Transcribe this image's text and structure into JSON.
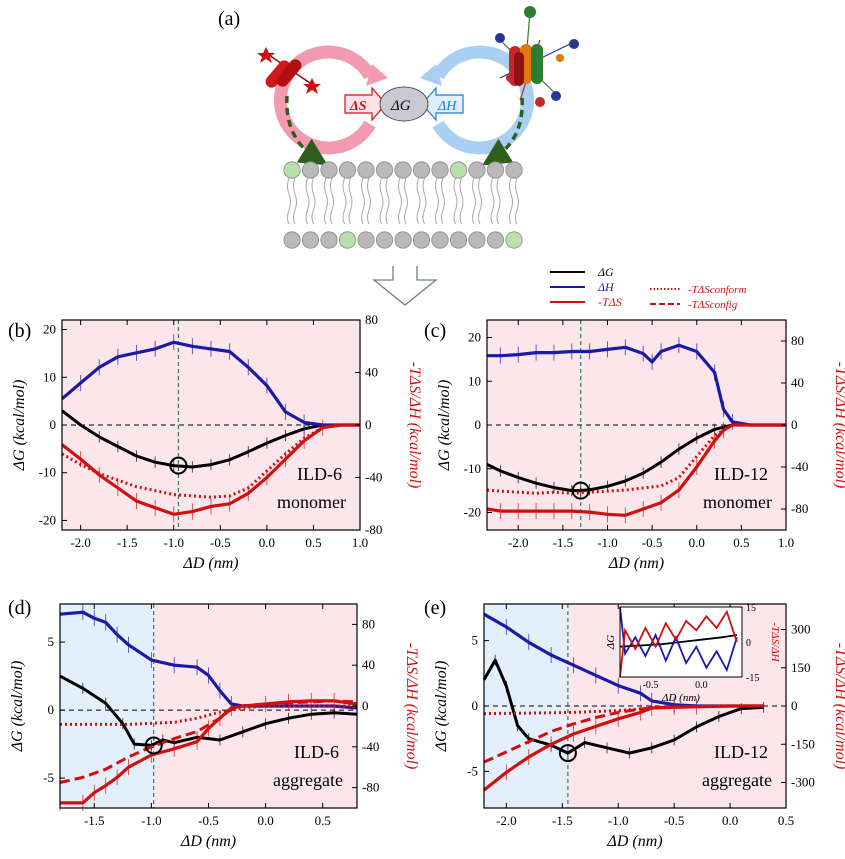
{
  "figure": {
    "label_a": "(a)",
    "delta_g": "ΔG",
    "delta_s": "ΔS",
    "delta_h": "ΔH"
  },
  "legend": {
    "dg": "ΔG",
    "dh": "ΔH",
    "tds": "-TΔS",
    "tds_conform": "-TΔSconform",
    "tds_config": "-TΔSconfig"
  },
  "colors": {
    "dg": "#000000",
    "dh": "#1a1aa6",
    "tds": "#d01010",
    "pink_bg": "#fbe6ec",
    "blue_bg": "#e3effa",
    "membrane_head": "#b9b9b9",
    "membrane_green": "#b8e0a8",
    "arrow_green": "#2e5e1e"
  },
  "chart_data": [
    {
      "panel": "(b)",
      "type": "line",
      "xlabel": "ΔD (nm)",
      "ylabel": "ΔG (kcal/mol)",
      "y2label": "-TΔS/ΔH (kcal/mol)",
      "xlim": [
        -2.2,
        1.0
      ],
      "ylim": [
        -22,
        22
      ],
      "y2lim": [
        -80,
        80
      ],
      "xticks": [
        -2.0,
        -1.5,
        -1.0,
        -0.5,
        0.0,
        0.5,
        1.0
      ],
      "yticks": [
        -20,
        -10,
        0,
        10,
        20
      ],
      "y2ticks": [
        -80,
        -40,
        0,
        40,
        80
      ],
      "xtick_labels": [
        "-2.0",
        "-1.5",
        "-1.0",
        "-0.5",
        "0.0",
        "0.5",
        "1.0"
      ],
      "ytick_labels": [
        "-20",
        "-10",
        "0",
        "10",
        "20"
      ],
      "y2tick_labels": [
        "-80",
        "-40",
        "0",
        "40",
        "80"
      ],
      "annotation": [
        "ILD-6",
        "monomer"
      ],
      "vline": -0.95,
      "circle": [
        -0.95,
        -8.5
      ],
      "blue_region": null,
      "series": [
        {
          "name": "ΔG",
          "axis": "left",
          "style": "solid",
          "x": [
            -2.2,
            -2.0,
            -1.8,
            -1.6,
            -1.4,
            -1.2,
            -1.0,
            -0.8,
            -0.6,
            -0.4,
            -0.2,
            0.0,
            0.2,
            0.4,
            0.6,
            0.8,
            1.0
          ],
          "y": [
            3.0,
            0.0,
            -2.5,
            -4.5,
            -6.5,
            -7.8,
            -8.5,
            -8.8,
            -8.3,
            -7.3,
            -5.6,
            -3.8,
            -2.2,
            -0.8,
            0.0,
            0.0,
            0.0
          ]
        },
        {
          "name": "ΔH",
          "axis": "right",
          "style": "solid",
          "x": [
            -2.2,
            -2.0,
            -1.8,
            -1.6,
            -1.4,
            -1.2,
            -1.0,
            -0.8,
            -0.6,
            -0.4,
            -0.2,
            0.0,
            0.2,
            0.4,
            0.6,
            0.8,
            1.0
          ],
          "y": [
            20,
            32,
            44,
            52,
            55,
            58,
            63,
            60,
            58,
            56,
            44,
            30,
            10,
            2,
            0,
            0,
            0
          ]
        },
        {
          "name": "-TΔS",
          "axis": "right",
          "style": "solid",
          "x": [
            -2.2,
            -2.0,
            -1.8,
            -1.6,
            -1.4,
            -1.2,
            -1.0,
            -0.8,
            -0.6,
            -0.4,
            -0.2,
            0.0,
            0.2,
            0.4,
            0.6,
            0.8,
            1.0
          ],
          "y": [
            -15,
            -26,
            -38,
            -48,
            -58,
            -63,
            -68,
            -66,
            -62,
            -60,
            -52,
            -40,
            -26,
            -12,
            -2,
            0,
            0
          ]
        },
        {
          "name": "-TΔSconform",
          "axis": "right",
          "style": "dotted",
          "x": [
            -2.2,
            -2.0,
            -1.8,
            -1.6,
            -1.4,
            -1.2,
            -1.0,
            -0.8,
            -0.6,
            -0.4,
            -0.2,
            0.0,
            0.2,
            0.4,
            0.6,
            0.8,
            1.0
          ],
          "y": [
            -22,
            -30,
            -37,
            -42,
            -47,
            -50,
            -53,
            -54,
            -55,
            -54,
            -48,
            -35,
            -22,
            -10,
            -2,
            0,
            0
          ]
        }
      ]
    },
    {
      "panel": "(c)",
      "type": "line",
      "xlabel": "ΔD (nm)",
      "ylabel": "ΔG (kcal/mol)",
      "y2label": "-TΔS/ΔH (kcal/mol)",
      "xlim": [
        -2.35,
        1.0
      ],
      "ylim": [
        -24,
        24
      ],
      "y2lim": [
        -100,
        100
      ],
      "xticks": [
        -2.0,
        -1.5,
        -1.0,
        -0.5,
        0.0,
        0.5,
        1.0
      ],
      "yticks": [
        -20,
        -10,
        0,
        10,
        20
      ],
      "y2ticks": [
        -80,
        -40,
        0,
        40,
        80
      ],
      "xtick_labels": [
        "-2.0",
        "-1.5",
        "-1.0",
        "-0.5",
        "0.0",
        "0.5",
        "1.0"
      ],
      "ytick_labels": [
        "-20",
        "-10",
        "0",
        "10",
        "20"
      ],
      "y2tick_labels": [
        "-80",
        "-40",
        "0",
        "40",
        "80"
      ],
      "annotation": [
        "ILD-12",
        "monomer"
      ],
      "vline": -1.3,
      "circle": [
        -1.3,
        -15
      ],
      "blue_region": null,
      "series": [
        {
          "name": "ΔG",
          "axis": "left",
          "style": "solid",
          "x": [
            -2.35,
            -2.2,
            -2.0,
            -1.8,
            -1.6,
            -1.4,
            -1.3,
            -1.2,
            -1.0,
            -0.8,
            -0.6,
            -0.4,
            -0.2,
            0.0,
            0.2,
            0.4,
            0.6,
            0.8,
            1.0
          ],
          "y": [
            -9.0,
            -10.5,
            -12.0,
            -13.3,
            -14.3,
            -15.0,
            -15.0,
            -14.8,
            -14.0,
            -12.8,
            -11.0,
            -8.5,
            -5.5,
            -3.0,
            -1.0,
            0.0,
            0.0,
            0.0,
            0.0
          ]
        },
        {
          "name": "ΔH",
          "axis": "right",
          "style": "solid",
          "x": [
            -2.35,
            -2.2,
            -2.0,
            -1.8,
            -1.6,
            -1.4,
            -1.2,
            -1.0,
            -0.8,
            -0.6,
            -0.5,
            -0.4,
            -0.2,
            0.0,
            0.2,
            0.3,
            0.4,
            0.6,
            0.8,
            1.0
          ],
          "y": [
            66,
            66,
            67,
            69,
            69,
            70,
            70,
            72,
            74,
            68,
            60,
            70,
            76,
            70,
            50,
            15,
            3,
            0,
            0,
            0
          ]
        },
        {
          "name": "-TΔS",
          "axis": "right",
          "style": "solid",
          "x": [
            -2.35,
            -2.2,
            -2.0,
            -1.8,
            -1.6,
            -1.4,
            -1.2,
            -1.0,
            -0.8,
            -0.6,
            -0.4,
            -0.2,
            0.0,
            0.2,
            0.3,
            0.4,
            0.6,
            0.8,
            1.0
          ],
          "y": [
            -80,
            -82,
            -82,
            -82,
            -82,
            -82,
            -83,
            -85,
            -86,
            -80,
            -74,
            -62,
            -40,
            -15,
            -5,
            0,
            0,
            0,
            0
          ]
        },
        {
          "name": "-TΔSconform",
          "axis": "right",
          "style": "dotted",
          "x": [
            -2.35,
            -2.2,
            -2.0,
            -1.8,
            -1.6,
            -1.4,
            -1.2,
            -1.0,
            -0.8,
            -0.6,
            -0.4,
            -0.2,
            0.0,
            0.2,
            0.4,
            0.6,
            0.8,
            1.0
          ],
          "y": [
            -62,
            -63,
            -64,
            -65,
            -64,
            -65,
            -64,
            -63,
            -62,
            -60,
            -58,
            -50,
            -30,
            -10,
            0,
            0,
            0,
            0
          ]
        }
      ]
    },
    {
      "panel": "(d)",
      "type": "line",
      "xlabel": "ΔD (nm)",
      "ylabel": "ΔG (kcal/mol)",
      "y2label": "-TΔS/ΔH (kcal/mol)",
      "xlim": [
        -1.8,
        0.8
      ],
      "ylim": [
        -7.2,
        7.8
      ],
      "y2lim": [
        -100,
        100
      ],
      "xticks": [
        -1.5,
        -1.0,
        -0.5,
        0.0,
        0.5
      ],
      "yticks": [
        -5,
        0,
        5
      ],
      "y2ticks": [
        -80,
        -40,
        0,
        40,
        80
      ],
      "xtick_labels": [
        "-1.5",
        "-1.0",
        "-0.5",
        "0.0",
        "0.5"
      ],
      "ytick_labels": [
        "-5",
        "0",
        "5"
      ],
      "y2tick_labels": [
        "-80",
        "-40",
        "0",
        "40",
        "80"
      ],
      "annotation": [
        "ILD-6",
        "aggregate"
      ],
      "vline": -0.98,
      "circle": [
        -0.98,
        -2.6
      ],
      "blue_region": [
        -1.8,
        -0.98
      ],
      "series": [
        {
          "name": "ΔG",
          "axis": "left",
          "style": "solid",
          "x": [
            -1.8,
            -1.6,
            -1.4,
            -1.25,
            -1.15,
            -1.0,
            -0.9,
            -0.8,
            -0.6,
            -0.4,
            -0.2,
            0.0,
            0.2,
            0.4,
            0.6,
            0.8
          ],
          "y": [
            2.5,
            1.6,
            0.5,
            -1.0,
            -2.5,
            -2.6,
            -2.2,
            -2.4,
            -2.0,
            -2.2,
            -1.6,
            -1.0,
            -0.6,
            -0.3,
            -0.2,
            -0.3
          ]
        },
        {
          "name": "ΔH",
          "axis": "right",
          "style": "solid",
          "x": [
            -1.8,
            -1.6,
            -1.5,
            -1.4,
            -1.3,
            -1.2,
            -1.0,
            -0.8,
            -0.6,
            -0.5,
            -0.4,
            -0.3,
            -0.2,
            0.0,
            0.2,
            0.4,
            0.6,
            0.8
          ],
          "y": [
            90,
            92,
            86,
            82,
            70,
            60,
            45,
            40,
            38,
            30,
            15,
            2,
            0,
            0,
            0,
            0,
            0,
            -2
          ]
        },
        {
          "name": "-TΔS",
          "axis": "right",
          "style": "solid",
          "x": [
            -1.8,
            -1.6,
            -1.5,
            -1.4,
            -1.3,
            -1.2,
            -1.0,
            -0.8,
            -0.6,
            -0.5,
            -0.4,
            -0.3,
            -0.2,
            0.0,
            0.2,
            0.4,
            0.6,
            0.8
          ],
          "y": [
            -95,
            -95,
            -85,
            -78,
            -70,
            -60,
            -48,
            -42,
            -35,
            -22,
            -12,
            -2,
            0,
            2,
            4,
            5,
            5,
            2
          ]
        },
        {
          "name": "-TΔSconform",
          "axis": "right",
          "style": "dotted",
          "x": [
            -1.8,
            -1.5,
            -1.2,
            -1.0,
            -0.8,
            -0.6,
            -0.4,
            -0.2,
            0.0,
            0.2,
            0.4,
            0.6,
            0.8
          ],
          "y": [
            -18,
            -18,
            -18,
            -17,
            -16,
            -12,
            -6,
            -2,
            0,
            0,
            0,
            0,
            0
          ]
        },
        {
          "name": "-TΔSconfig",
          "axis": "right",
          "style": "dashed",
          "x": [
            -1.8,
            -1.6,
            -1.4,
            -1.2,
            -1.0,
            -0.8,
            -0.6,
            -0.4,
            -0.3,
            -0.2,
            0.0,
            0.2,
            0.4,
            0.6,
            0.8
          ],
          "y": [
            -75,
            -70,
            -62,
            -50,
            -40,
            -32,
            -25,
            -12,
            -3,
            0,
            2,
            3,
            4,
            5,
            4
          ]
        }
      ]
    },
    {
      "panel": "(e)",
      "type": "line",
      "xlabel": "ΔD (nm)",
      "ylabel": "ΔG (kcal/mol)",
      "y2label": "-TΔS/ΔH (kcal/mol)",
      "xlim": [
        -2.2,
        0.5
      ],
      "ylim": [
        -7.8,
        7.8
      ],
      "y2lim": [
        -400,
        400
      ],
      "xticks": [
        -2.0,
        -1.5,
        -1.0,
        -0.5,
        0.0,
        0.5
      ],
      "yticks": [
        -5,
        0,
        5
      ],
      "y2ticks": [
        -300,
        -150,
        0,
        150,
        300
      ],
      "xtick_labels": [
        "-2.0",
        "-1.5",
        "-1.0",
        "-0.5",
        "0.0",
        "0.5"
      ],
      "ytick_labels": [
        "-5",
        "0",
        "5"
      ],
      "y2tick_labels": [
        "-300",
        "-150",
        "0",
        "150",
        "300"
      ],
      "annotation": [
        "ILD-12",
        "aggregate"
      ],
      "vline": -1.45,
      "circle": [
        -1.45,
        -3.6
      ],
      "blue_region": [
        -2.2,
        -1.45
      ],
      "series": [
        {
          "name": "ΔG",
          "axis": "left",
          "style": "solid",
          "x": [
            -2.2,
            -2.1,
            -2.0,
            -1.9,
            -1.8,
            -1.6,
            -1.45,
            -1.3,
            -1.1,
            -0.9,
            -0.7,
            -0.5,
            -0.3,
            -0.1,
            0.1,
            0.3
          ],
          "y": [
            2.0,
            3.5,
            1.5,
            -1.5,
            -2.5,
            -3.0,
            -3.6,
            -2.8,
            -3.2,
            -3.6,
            -3.2,
            -2.6,
            -1.6,
            -0.8,
            -0.2,
            -0.1
          ]
        },
        {
          "name": "ΔH",
          "axis": "right",
          "style": "solid",
          "x": [
            -2.2,
            -2.0,
            -1.8,
            -1.6,
            -1.4,
            -1.2,
            -1.0,
            -0.8,
            -0.7,
            -0.5,
            -0.3,
            0.0,
            0.3
          ],
          "y": [
            360,
            310,
            250,
            200,
            160,
            120,
            80,
            50,
            20,
            5,
            0,
            0,
            0
          ]
        },
        {
          "name": "-TΔS",
          "axis": "right",
          "style": "solid",
          "x": [
            -2.2,
            -2.0,
            -1.8,
            -1.6,
            -1.4,
            -1.2,
            -1.0,
            -0.8,
            -0.7,
            -0.5,
            -0.3,
            0.0,
            0.3
          ],
          "y": [
            -330,
            -260,
            -200,
            -150,
            -110,
            -80,
            -50,
            -25,
            -8,
            -5,
            -3,
            0,
            0
          ]
        },
        {
          "name": "-TΔSconform",
          "axis": "right",
          "style": "dotted",
          "x": [
            -2.2,
            -1.8,
            -1.4,
            -1.0,
            -0.7,
            -0.4,
            0.0,
            0.3
          ],
          "y": [
            -30,
            -28,
            -25,
            -18,
            -8,
            -3,
            0,
            0
          ]
        },
        {
          "name": "-TΔSconfig",
          "axis": "right",
          "style": "dashed",
          "x": [
            -2.2,
            -2.0,
            -1.8,
            -1.6,
            -1.4,
            -1.2,
            -1.0,
            -0.8,
            -0.6,
            -0.3,
            0.0,
            0.3
          ],
          "y": [
            -220,
            -180,
            -140,
            -100,
            -70,
            -45,
            -25,
            -12,
            -5,
            -2,
            0,
            0
          ]
        }
      ]
    }
  ],
  "inset": {
    "type": "line",
    "xlabel": "ΔD (nm)",
    "ylabel": "ΔG",
    "y2label": "-TΔS/ΔH",
    "xlim": [
      -0.8,
      0.4
    ],
    "y2lim": [
      -15,
      15
    ],
    "xticks": [
      -0.5,
      0.0
    ],
    "xtick_labels": [
      "-0.5",
      "0.0"
    ],
    "y2ticks": [
      -15,
      0,
      15
    ],
    "y2tick_labels": [
      "-15",
      "0",
      "15"
    ],
    "series": [
      {
        "name": "ΔG",
        "x": [
          -0.8,
          -0.6,
          -0.4,
          -0.2,
          0.0,
          0.2,
          0.35
        ],
        "y": [
          -2,
          -1.5,
          -1,
          0,
          1,
          2,
          3
        ]
      },
      {
        "name": "ΔH",
        "x": [
          -0.8,
          -0.75,
          -0.65,
          -0.55,
          -0.45,
          -0.35,
          -0.25,
          -0.15,
          -0.05,
          0.05,
          0.15,
          0.25,
          0.35
        ],
        "y": [
          15,
          -5,
          2,
          -6,
          3,
          -8,
          2,
          -9,
          -2,
          -11,
          -4,
          -12,
          2
        ]
      },
      {
        "name": "-TΔS",
        "x": [
          -0.8,
          -0.75,
          -0.65,
          -0.55,
          -0.45,
          -0.35,
          -0.25,
          -0.15,
          -0.05,
          0.05,
          0.15,
          0.25,
          0.35
        ],
        "y": [
          -15,
          5,
          -3,
          6,
          -2,
          8,
          1,
          9,
          5,
          11,
          6,
          13,
          0
        ]
      }
    ]
  }
}
